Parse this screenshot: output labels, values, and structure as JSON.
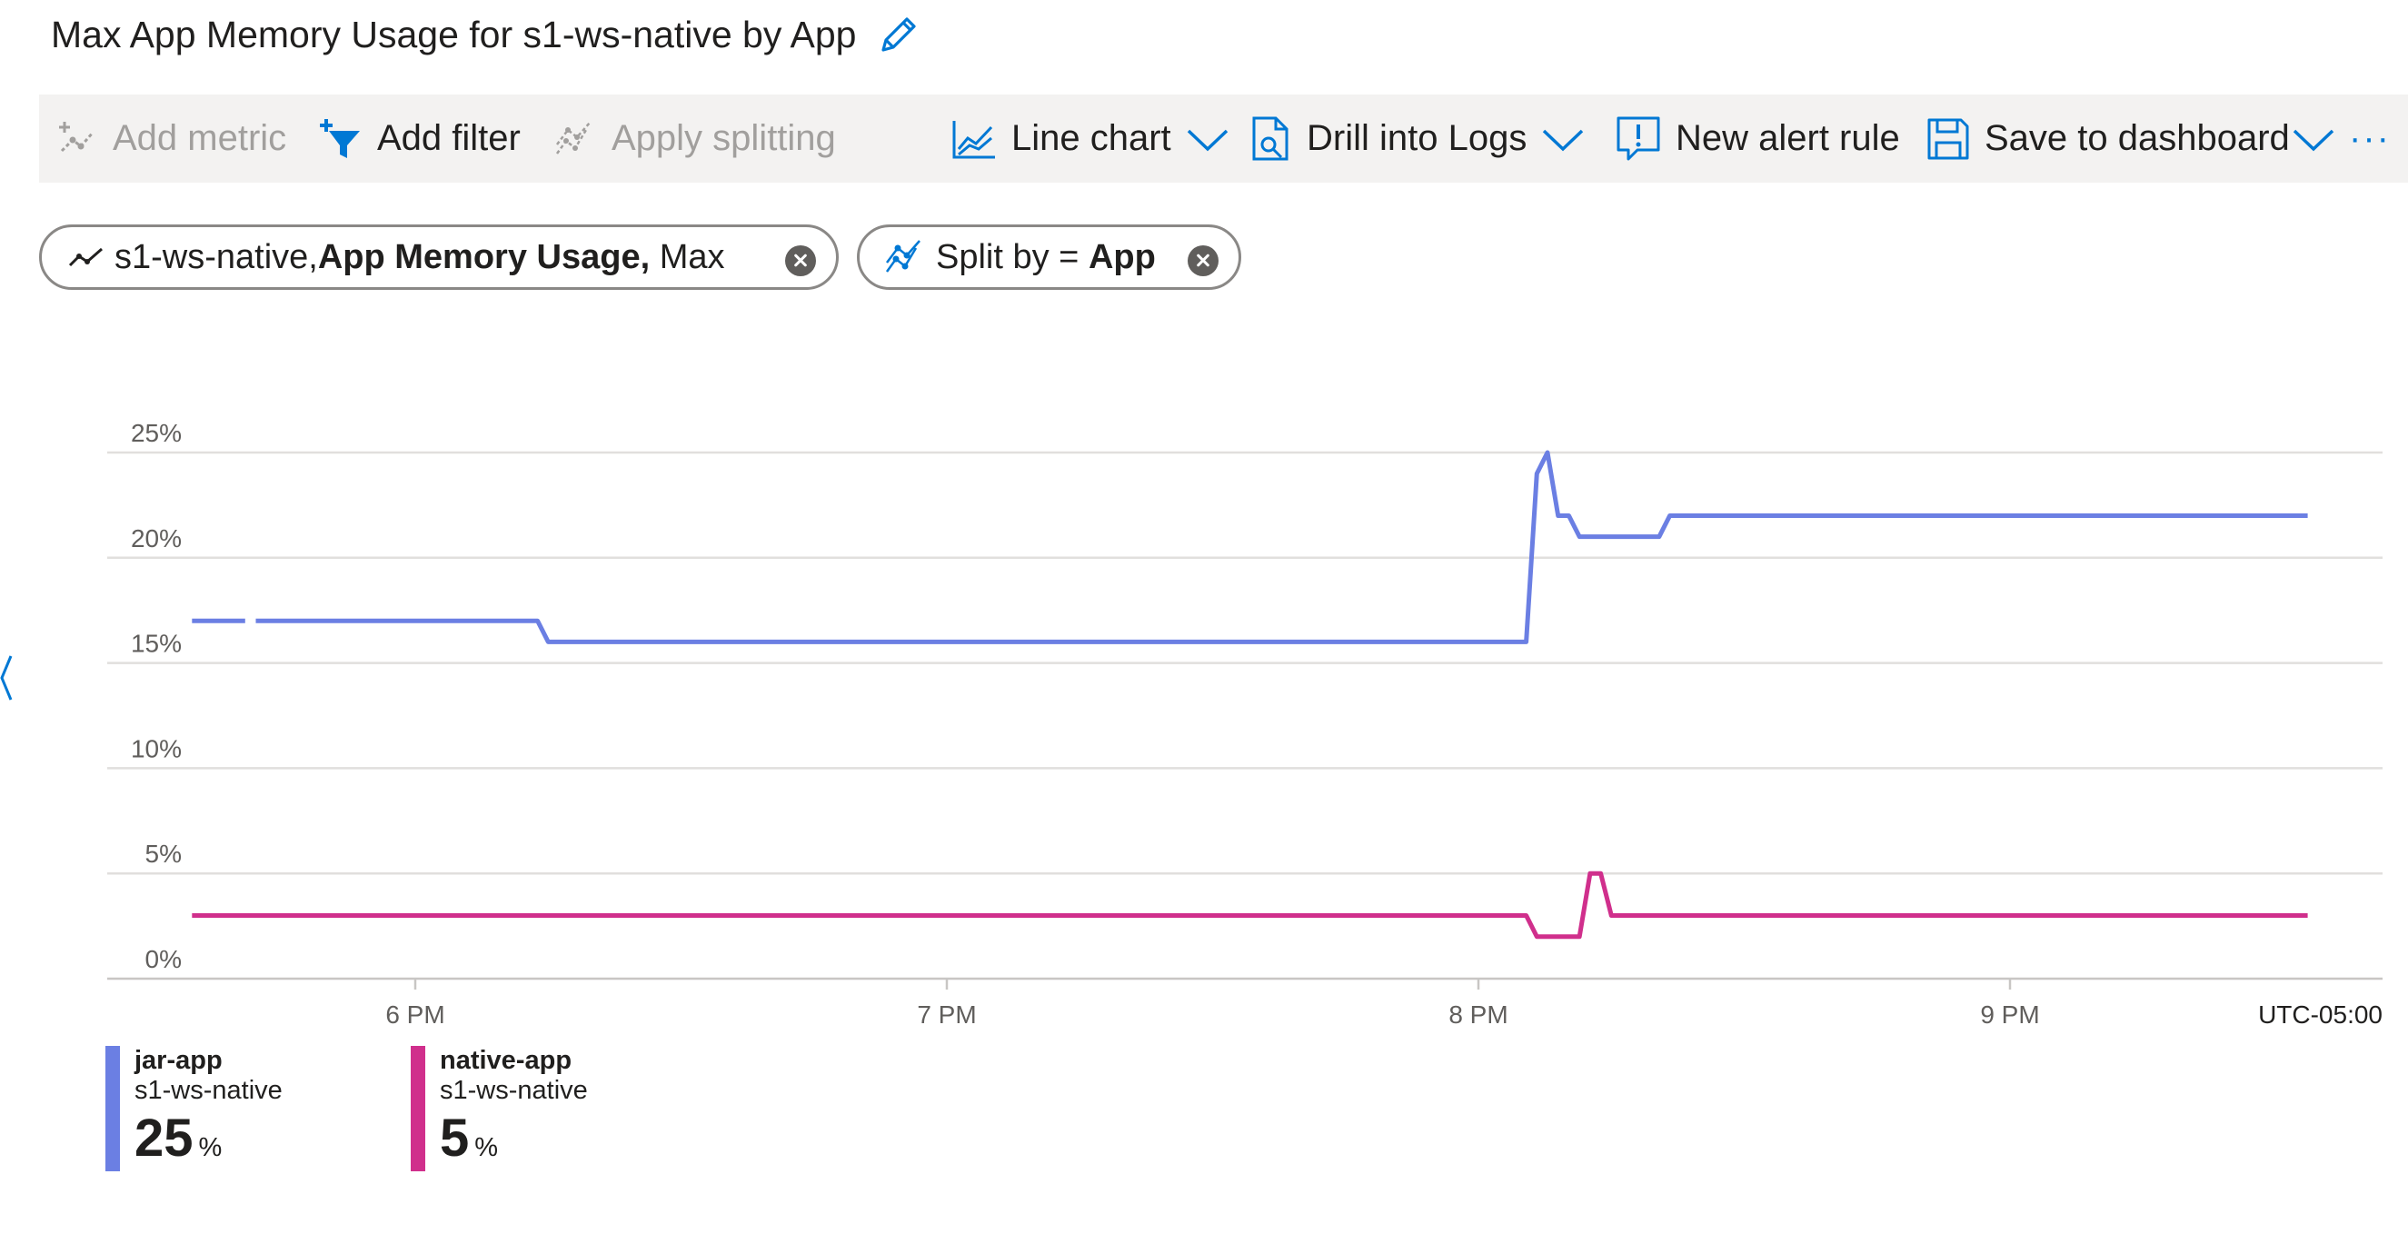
{
  "header": {
    "title": "Max App Memory Usage for s1-ws-native by App"
  },
  "toolbar": {
    "add_metric": "Add metric",
    "add_filter": "Add filter",
    "apply_splitting": "Apply splitting",
    "line_chart": "Line chart",
    "drill_into_logs": "Drill into Logs",
    "new_alert_rule": "New alert rule",
    "save_to_dashboard": "Save to dashboard",
    "more": "···"
  },
  "pills": {
    "metric": {
      "resource": "s1-ws-native,",
      "metric": "App Memory Usage,",
      "aggregation": "Max"
    },
    "split": {
      "prefix": "Split by =",
      "value": "App"
    }
  },
  "colors": {
    "accent": "#0078d4",
    "jar_app": "#6b7fe3",
    "native_app": "#d02f8c",
    "toolbar_bg": "#f3f2f1"
  },
  "chart_data": {
    "type": "line",
    "ylim": [
      0,
      25
    ],
    "yticks": [
      "0%",
      "5%",
      "10%",
      "15%",
      "20%",
      "25%"
    ],
    "xticks": [
      "6 PM",
      "7 PM",
      "8 PM",
      "9 PM"
    ],
    "timezone": "UTC-05:00",
    "grid": true,
    "x_range_hours": [
      17.58,
      21.75
    ],
    "series": [
      {
        "name": "jar-app",
        "color": "#6b7fe3",
        "segments": [
          [
            [
              17.58,
              17
            ],
            [
              17.68,
              17
            ]
          ],
          [
            [
              17.7,
              17
            ],
            [
              18.23,
              17
            ],
            [
              18.25,
              16
            ],
            [
              20.09,
              16
            ],
            [
              20.11,
              24
            ],
            [
              20.13,
              25
            ],
            [
              20.15,
              22
            ],
            [
              20.17,
              22
            ],
            [
              20.19,
              21
            ],
            [
              20.34,
              21
            ],
            [
              20.36,
              22
            ],
            [
              21.56,
              22
            ]
          ]
        ]
      },
      {
        "name": "native-app",
        "color": "#d02f8c",
        "segments": [
          [
            [
              17.58,
              3
            ],
            [
              20.09,
              3
            ],
            [
              20.11,
              2
            ],
            [
              20.19,
              2
            ],
            [
              20.21,
              5
            ],
            [
              20.23,
              5
            ],
            [
              20.25,
              3
            ],
            [
              21.56,
              3
            ]
          ]
        ]
      }
    ]
  },
  "legend": [
    {
      "name": "jar-app",
      "resource": "s1-ws-native",
      "value": "25",
      "unit": "%",
      "color": "#6b7fe3"
    },
    {
      "name": "native-app",
      "resource": "s1-ws-native",
      "value": "5",
      "unit": "%",
      "color": "#d02f8c"
    }
  ]
}
